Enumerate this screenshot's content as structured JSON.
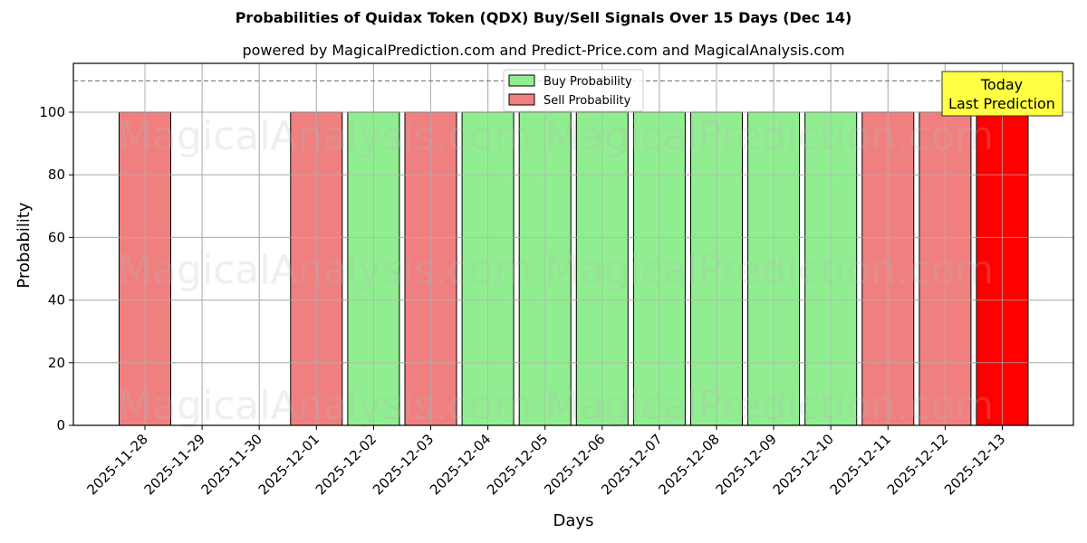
{
  "title": "Probabilities of Quidax Token (QDX) Buy/Sell Signals Over 15 Days (Dec 14)",
  "subtitle": "powered by MagicalPrediction.com and Predict-Price.com and MagicalAnalysis.com",
  "xlabel": "Days",
  "ylabel": "Probability",
  "legend": {
    "buy_label": "Buy Probability",
    "sell_label": "Sell Probability"
  },
  "annotation": {
    "line1": "Today",
    "line2": "Last Prediction"
  },
  "watermarks": [
    "MagicalAnalysis.com",
    "MagicalPrediction.com"
  ],
  "colors": {
    "buy": "#90ee90",
    "sell": "#f08080",
    "today_sell": "#ff0000",
    "annotation_bg": "#ffff44",
    "grid": "#b0b0b0",
    "threshold_line": "#808080"
  },
  "chart_data": {
    "type": "bar",
    "title": "Probabilities of Quidax Token (QDX) Buy/Sell Signals Over 15 Days (Dec 14)",
    "subtitle": "powered by MagicalPrediction.com and Predict-Price.com and MagicalAnalysis.com",
    "xlabel": "Days",
    "ylabel": "Probability",
    "ylim": [
      0,
      115.6
    ],
    "yticks": [
      0,
      20,
      40,
      60,
      80,
      100
    ],
    "grid": true,
    "legend_position": "upper center",
    "threshold_line": 110,
    "categories": [
      "2025-11-28",
      "2025-11-29",
      "2025-11-30",
      "2025-12-01",
      "2025-12-02",
      "2025-12-03",
      "2025-12-04",
      "2025-12-05",
      "2025-12-06",
      "2025-12-07",
      "2025-12-08",
      "2025-12-09",
      "2025-12-10",
      "2025-12-11",
      "2025-12-12",
      "2025-12-13"
    ],
    "series": [
      {
        "name": "Buy Probability",
        "values": [
          0,
          0,
          0,
          0,
          100,
          0,
          100,
          100,
          100,
          100,
          100,
          100,
          100,
          0,
          0,
          0
        ]
      },
      {
        "name": "Sell Probability",
        "values": [
          100,
          0,
          0,
          100,
          0,
          100,
          0,
          0,
          0,
          0,
          0,
          0,
          0,
          100,
          100,
          100
        ]
      }
    ],
    "highlight": {
      "category": "2025-12-13",
      "label": "Today\nLast Prediction"
    }
  }
}
